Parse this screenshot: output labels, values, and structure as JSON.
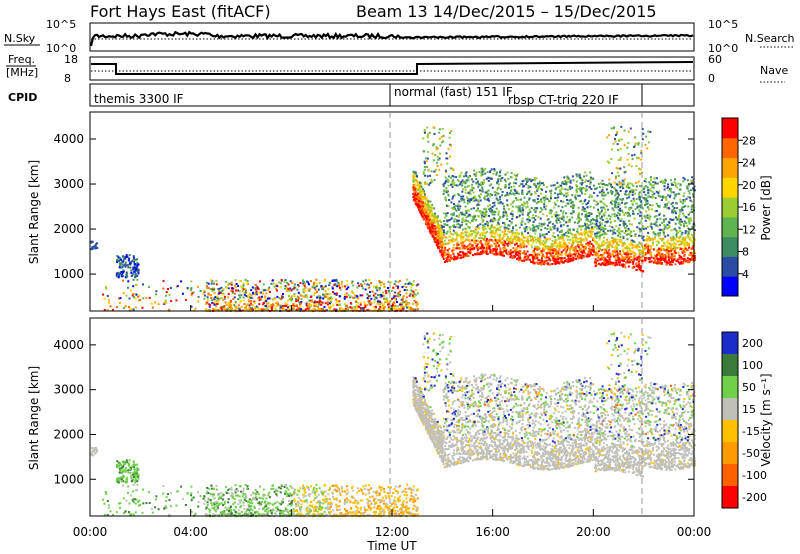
{
  "header": {
    "station": "Fort Hays East (fitACF)",
    "beam_date": "Beam 13  14/Dec/2015 – 15/Dec/2015"
  },
  "sky_panel": {
    "left_label": "N.Sky",
    "left_ticks": [
      "10^5",
      "10^0"
    ],
    "right_ticks": [
      "10^5",
      "10^0"
    ],
    "right_label": "N.Search"
  },
  "freq_panel": {
    "left_label_1": "Freq.",
    "left_label_2": "[MHz]",
    "left_ticks": [
      "18",
      "8"
    ],
    "right_ticks": [
      "60",
      "0"
    ],
    "right_label": "Nave"
  },
  "cpid_panel": {
    "label": "CPID",
    "modes": [
      "themis 3300 IF",
      "normal (fast) 151 IF",
      "rbsp CT-trig 220 IF"
    ]
  },
  "colors": {
    "power": [
      "#0000ff",
      "#2a4ca4",
      "#3c8c64",
      "#5fb450",
      "#9acd32",
      "#ffd700",
      "#ffa500",
      "#ff6600",
      "#ff0000"
    ],
    "velocity": [
      "#1c2cc8",
      "#3a7a3a",
      "#6fd04a",
      "#c0c0b8",
      "#ffc000",
      "#ff9a00",
      "#ff6000",
      "#ff0000"
    ]
  },
  "chart_data": [
    {
      "type": "heatmap",
      "title": "Power",
      "ylabel": "Slant Range [km]",
      "y_ticks": [
        "1000",
        "2000",
        "3000",
        "4000"
      ],
      "ylim": [
        180,
        4600
      ],
      "colorbar_label": "Power [dB]",
      "colorbar_ticks": [
        "4",
        "8",
        "12",
        "16",
        "20",
        "24",
        "28"
      ],
      "colorbar_range": [
        0,
        32
      ]
    },
    {
      "type": "heatmap",
      "title": "Velocity",
      "ylabel": "Slant Range [km]",
      "y_ticks": [
        "1000",
        "2000",
        "3000",
        "4000"
      ],
      "ylim": [
        180,
        4600
      ],
      "colorbar_label": "Velocity [m s⁻¹]",
      "colorbar_ticks": [
        "200",
        "100",
        "50",
        "15",
        "-15",
        "-50",
        "-100",
        "-200"
      ]
    }
  ],
  "x_axis": {
    "label": "Time UT",
    "ticks": [
      "00:00",
      "04:00",
      "08:00",
      "12:00",
      "16:00",
      "20:00",
      "00:00"
    ]
  }
}
